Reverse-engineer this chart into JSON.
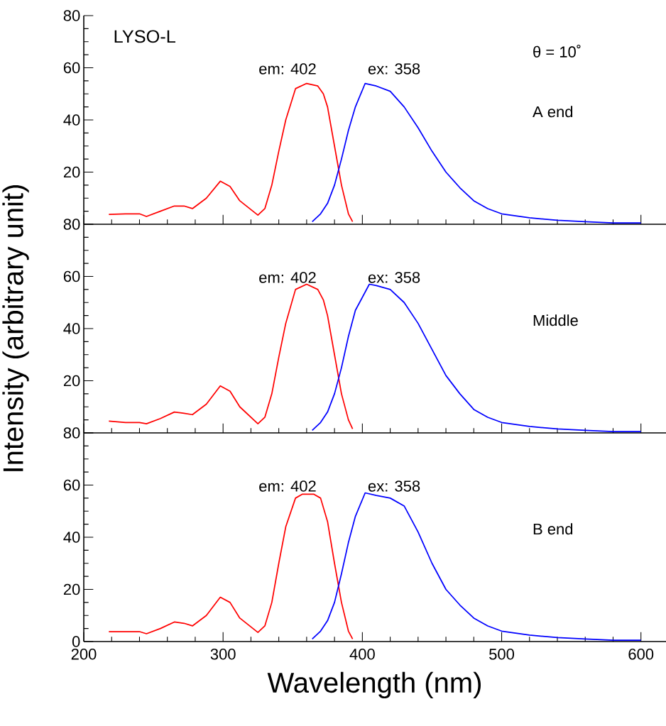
{
  "chart_data": [
    {
      "type": "line",
      "title": "LYSO-L",
      "xlim": [
        200,
        618
      ],
      "xticks": [
        200,
        300,
        400,
        500,
        600
      ],
      "ylim": [
        0,
        80
      ],
      "yticks": [
        {
          "value": 0,
          "label": null
        },
        20,
        40,
        60,
        80
      ],
      "tick_labels": "y",
      "annotations": [
        "em: 402",
        "ex: 358",
        "θ = 10˚",
        "A end"
      ],
      "series": [
        {
          "color": "#ff0000",
          "x": [
            218,
            230,
            240,
            245,
            255,
            265,
            272,
            278,
            288,
            298,
            305,
            312,
            325,
            330,
            335,
            340,
            345,
            352,
            360,
            368,
            372,
            375,
            380,
            385,
            390,
            393
          ],
          "values": [
            3.8,
            4,
            4,
            3,
            5,
            7,
            7,
            6,
            10,
            16.5,
            14.5,
            9,
            3.5,
            6,
            15,
            28,
            40,
            52,
            54,
            53,
            50,
            45,
            30,
            15,
            4,
            1
          ]
        },
        {
          "color": "#0000ff",
          "x": [
            364,
            370,
            375,
            380,
            385,
            390,
            395,
            402,
            410,
            420,
            430,
            440,
            450,
            460,
            470,
            480,
            490,
            500,
            520,
            540,
            560,
            580,
            600
          ],
          "values": [
            1,
            4,
            8,
            15,
            25,
            36,
            45,
            54,
            53,
            51,
            45,
            37,
            28,
            20,
            14,
            9,
            6,
            4,
            2.5,
            1.5,
            1,
            0.5,
            0.5
          ]
        }
      ]
    },
    {
      "type": "line",
      "xlim": [
        200,
        618
      ],
      "xticks": [
        200,
        300,
        400,
        500,
        600
      ],
      "ylim": [
        0,
        80
      ],
      "yticks": [
        {
          "value": 0,
          "label": null
        },
        20,
        40,
        60,
        80
      ],
      "tick_labels": "y",
      "ylabel": "Intensity (arbitrary unit)",
      "annotations": [
        "em: 402",
        "ex: 358",
        "Middle"
      ],
      "series": [
        {
          "color": "#ff0000",
          "x": [
            218,
            230,
            240,
            245,
            255,
            265,
            272,
            278,
            288,
            298,
            305,
            312,
            325,
            330,
            335,
            340,
            345,
            352,
            360,
            368,
            372,
            375,
            380,
            385,
            390,
            393
          ],
          "values": [
            4.5,
            4,
            4,
            3.5,
            5.5,
            8,
            7.5,
            7,
            11,
            18,
            16,
            10,
            3.5,
            6,
            15,
            29,
            42,
            55,
            57,
            55,
            51,
            45,
            30,
            15,
            5,
            1.5
          ]
        },
        {
          "color": "#0000ff",
          "x": [
            364,
            370,
            375,
            380,
            385,
            390,
            395,
            405,
            410,
            420,
            430,
            440,
            450,
            460,
            470,
            480,
            490,
            500,
            520,
            540,
            560,
            580,
            600
          ],
          "values": [
            1,
            4,
            8,
            15,
            25,
            37,
            47,
            57,
            56.5,
            55,
            50,
            42,
            32,
            22,
            15,
            9,
            6,
            4,
            2.5,
            1.5,
            1,
            0.5,
            0.5
          ]
        }
      ]
    },
    {
      "type": "line",
      "xlim": [
        200,
        618
      ],
      "xticks": [
        200,
        300,
        400,
        500,
        600
      ],
      "ylim": [
        0,
        80
      ],
      "yticks": [
        0,
        20,
        40,
        60,
        80
      ],
      "xlabel": "Wavelength (nm)",
      "annotations": [
        "em: 402",
        "ex: 358",
        "B end"
      ],
      "series": [
        {
          "color": "#ff0000",
          "x": [
            218,
            230,
            240,
            245,
            255,
            265,
            272,
            278,
            288,
            298,
            305,
            312,
            325,
            330,
            335,
            340,
            345,
            352,
            357,
            365,
            370,
            375,
            380,
            385,
            390,
            393
          ],
          "values": [
            3.8,
            3.8,
            3.8,
            3,
            5,
            7.5,
            7,
            6,
            10,
            17,
            15,
            9,
            3.5,
            6,
            15,
            30,
            44,
            55,
            56.5,
            56.5,
            55,
            46,
            30,
            15,
            4,
            1
          ]
        },
        {
          "color": "#0000ff",
          "x": [
            364,
            370,
            375,
            380,
            385,
            390,
            395,
            402,
            410,
            420,
            430,
            440,
            450,
            460,
            470,
            480,
            490,
            500,
            520,
            540,
            560,
            580,
            600
          ],
          "values": [
            1,
            4,
            8,
            15,
            26,
            38,
            48,
            57,
            56,
            55,
            52,
            42,
            30,
            20,
            14,
            9,
            6,
            4,
            2.5,
            1.5,
            1,
            0.5,
            0.5
          ]
        }
      ]
    }
  ]
}
